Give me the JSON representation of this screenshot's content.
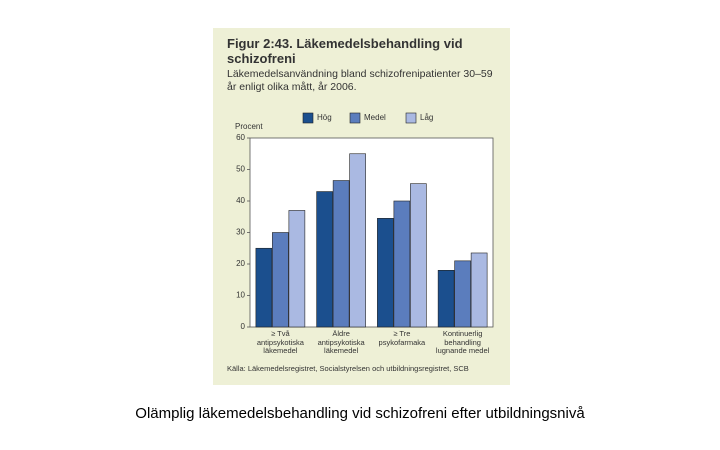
{
  "chart_data": {
    "type": "bar",
    "title": "Figur 2:43. Läkemedelsbehandling vid schizofreni",
    "subtitle": "Läkemedelsanvändning bland schizofrenipatienter 30–59 år enligt olika mått, år 2006.",
    "y_label": "Procent",
    "categories": [
      "≥ Två antipsykotiska läkemedel",
      "Äldre antipsykotiska läkemedel",
      "≥ Tre psykofarmaka",
      "Kontinuerlig behandling lugnande medel"
    ],
    "series": [
      {
        "name": "Hög",
        "color": "#1b4f8e",
        "values": [
          25,
          43,
          34.5,
          18
        ]
      },
      {
        "name": "Medel",
        "color": "#5b7dbd",
        "values": [
          30,
          46.5,
          40,
          21
        ]
      },
      {
        "name": "Låg",
        "color": "#aab9e2",
        "values": [
          37,
          55,
          45.5,
          23.5
        ]
      }
    ],
    "ylim": [
      0,
      60
    ],
    "yticks": [
      0,
      10,
      20,
      30,
      40,
      50,
      60
    ],
    "grid": false,
    "source": "Källa: Läkemedelsregistret, Socialstyrelsen och utbildningsregistret, SCB",
    "caption": "Olämplig läkemedelsbehandling vid schizofreni efter utbildningsnivå"
  }
}
